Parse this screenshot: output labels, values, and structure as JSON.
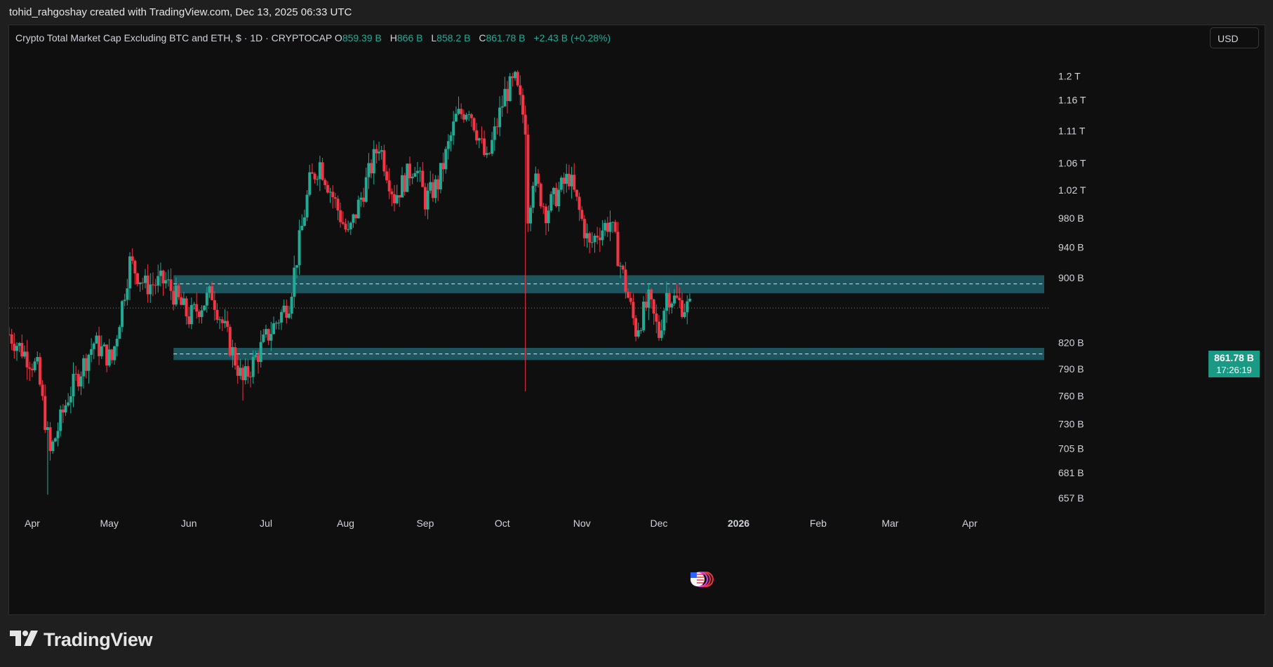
{
  "caption": "tohid_rahgoshay created with TradingView.com, Dec 13, 2025 06:33 UTC",
  "legend": {
    "title": "Crypto Total Market Cap Excluding BTC and ETH, $ · 1D · CRYPTOCAP",
    "o_label": "O",
    "o_value": "859.39 B",
    "h_label": "H",
    "h_value": "866 B",
    "l_label": "L",
    "l_value": "858.2 B",
    "c_label": "C",
    "c_value": "861.78 B",
    "change": "+2.43 B (+0.28%)"
  },
  "currency": "USD",
  "last_price": {
    "value": "861.78 B",
    "countdown": "17:26:19"
  },
  "brand": {
    "name": "TradingView",
    "logo_icon": "tradingview-logo-icon"
  },
  "colors": {
    "up": "#22ab94",
    "down": "#f23645",
    "zone_fill": "#1e5a63",
    "zone_line": "#cfe8ea",
    "last_price_bg": "#1a9a85"
  },
  "chart_data": {
    "type": "candlestick",
    "y_scale": "log",
    "ylim": [
      640,
      1240
    ],
    "y_tick_values": [
      1200,
      1160,
      1110,
      1060,
      1020,
      980,
      940,
      900,
      820,
      790,
      760,
      730,
      705,
      681,
      657
    ],
    "y_tick_labels": [
      "1.2 T",
      "1.16 T",
      "1.11 T",
      "1.06 T",
      "1.02 T",
      "980 B",
      "940 B",
      "900 B",
      "820 B",
      "790 B",
      "760 B",
      "730 B",
      "705 B",
      "681 B",
      "657 B"
    ],
    "x_range": [
      "2025-03-23",
      "2026-04-30"
    ],
    "x_ticks": [
      {
        "date": "2025-04-01",
        "label": "Apr",
        "bold": false
      },
      {
        "date": "2025-05-01",
        "label": "May",
        "bold": false
      },
      {
        "date": "2025-06-01",
        "label": "Jun",
        "bold": false
      },
      {
        "date": "2025-07-01",
        "label": "Jul",
        "bold": false
      },
      {
        "date": "2025-08-01",
        "label": "Aug",
        "bold": false
      },
      {
        "date": "2025-09-01",
        "label": "Sep",
        "bold": false
      },
      {
        "date": "2025-10-01",
        "label": "Oct",
        "bold": false
      },
      {
        "date": "2025-11-01",
        "label": "Nov",
        "bold": false
      },
      {
        "date": "2025-12-01",
        "label": "Dec",
        "bold": false
      },
      {
        "date": "2026-01-01",
        "label": "2026",
        "bold": true
      },
      {
        "date": "2026-02-01",
        "label": "Feb",
        "bold": false
      },
      {
        "date": "2026-03-01",
        "label": "Mar",
        "bold": false
      },
      {
        "date": "2026-04-01",
        "label": "Apr",
        "bold": false
      }
    ],
    "zones": [
      {
        "top": 903,
        "bottom": 880,
        "dashed_level": 892
      },
      {
        "top": 814,
        "bottom": 800,
        "dashed_level": 807
      }
    ],
    "last_price_level": 861.78,
    "path_anchors": [
      {
        "date": "2025-03-23",
        "close": 830
      },
      {
        "date": "2025-04-03",
        "close": 790
      },
      {
        "date": "2025-04-08",
        "close": 700
      },
      {
        "date": "2025-04-15",
        "close": 760
      },
      {
        "date": "2025-04-25",
        "close": 820
      },
      {
        "date": "2025-05-02",
        "close": 800
      },
      {
        "date": "2025-05-09",
        "close": 920
      },
      {
        "date": "2025-05-15",
        "close": 890
      },
      {
        "date": "2025-05-23",
        "close": 895
      },
      {
        "date": "2025-06-01",
        "close": 850
      },
      {
        "date": "2025-06-10",
        "close": 880
      },
      {
        "date": "2025-06-22",
        "close": 775
      },
      {
        "date": "2025-07-01",
        "close": 825
      },
      {
        "date": "2025-07-10",
        "close": 870
      },
      {
        "date": "2025-07-18",
        "close": 1030
      },
      {
        "date": "2025-07-22",
        "close": 1060
      },
      {
        "date": "2025-08-02",
        "close": 955
      },
      {
        "date": "2025-08-14",
        "close": 1090
      },
      {
        "date": "2025-08-20",
        "close": 1010
      },
      {
        "date": "2025-08-28",
        "close": 1060
      },
      {
        "date": "2025-09-01",
        "close": 1005
      },
      {
        "date": "2025-09-06",
        "close": 1030
      },
      {
        "date": "2025-09-13",
        "close": 1130
      },
      {
        "date": "2025-09-18",
        "close": 1150
      },
      {
        "date": "2025-09-25",
        "close": 1060
      },
      {
        "date": "2025-10-02",
        "close": 1170
      },
      {
        "date": "2025-10-06",
        "close": 1190
      },
      {
        "date": "2025-10-10",
        "close": 1120
      },
      {
        "date": "2025-10-11",
        "close": 985
      },
      {
        "date": "2025-10-13",
        "close": 1040
      },
      {
        "date": "2025-10-18",
        "close": 990
      },
      {
        "date": "2025-10-27",
        "close": 1040
      },
      {
        "date": "2025-11-04",
        "close": 940
      },
      {
        "date": "2025-11-07",
        "close": 960
      },
      {
        "date": "2025-11-12",
        "close": 975
      },
      {
        "date": "2025-11-22",
        "close": 835
      },
      {
        "date": "2025-11-27",
        "close": 870
      },
      {
        "date": "2025-12-01",
        "close": 830
      },
      {
        "date": "2025-12-04",
        "close": 880
      },
      {
        "date": "2025-12-10",
        "close": 865
      },
      {
        "date": "2025-12-13",
        "close": 861.78
      }
    ],
    "notable_wicks": [
      {
        "date": "2025-10-10",
        "low": 765,
        "high": 1130
      },
      {
        "date": "2025-04-07",
        "low": 660,
        "high": 720
      },
      {
        "date": "2025-06-22",
        "low": 755,
        "high": 795
      }
    ]
  }
}
